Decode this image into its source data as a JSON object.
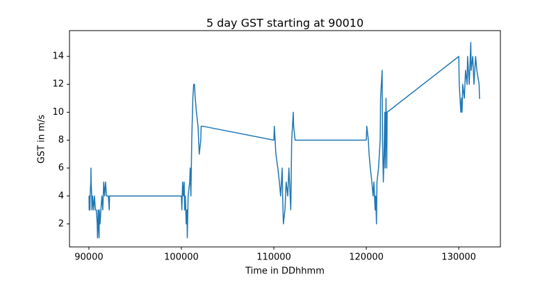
{
  "chart_data": {
    "type": "line",
    "title": "5 day GST starting at 90010",
    "xlabel": "Time in DDhhmm",
    "ylabel": "GST in m/s",
    "color": "#1f77b4",
    "x": [
      90010,
      90030,
      90050,
      90110,
      90130,
      90200,
      90220,
      90240,
      90300,
      90330,
      90400,
      90500,
      90600,
      90700,
      90800,
      90900,
      90930,
      91000,
      91030,
      91100,
      91130,
      91200,
      91300,
      91400,
      91500,
      91600,
      91700,
      91800,
      91900,
      92000,
      92100,
      92200,
      92230,
      100000,
      100050,
      100130,
      100220,
      100300,
      100350,
      100430,
      100520,
      100600,
      100640,
      100730,
      100900,
      100950,
      101030,
      101120,
      101200,
      101240,
      101330,
      101410,
      101500,
      101630,
      101800,
      101930,
      102100,
      102140,
      102300,
      110000,
      110050,
      110220,
      110430,
      110600,
      110730,
      110820,
      110900,
      110950,
      111030,
      111200,
      111330,
      111500,
      111630,
      111830,
      111930,
      112100,
      112140,
      112300,
      120000,
      120050,
      120220,
      120300,
      120430,
      120600,
      120730,
      120820,
      120950,
      121010,
      121100,
      121150,
      121320,
      121500,
      121540,
      121710,
      121750,
      121840,
      121920,
      122000,
      122040,
      122130,
      122210,
      122250,
      130000,
      130050,
      130220,
      130300,
      130350,
      130430,
      130600,
      130730,
      130900,
      130950,
      131130,
      131300,
      131340,
      131510,
      131640,
      131820,
      131950,
      132200,
      132240,
      132320
    ],
    "values": [
      4,
      3,
      4,
      3,
      4,
      5,
      6,
      5,
      4,
      3,
      4,
      3,
      4,
      3,
      3,
      2,
      1,
      3,
      2,
      1,
      3,
      2,
      3,
      4,
      3,
      5,
      4,
      5,
      4,
      4,
      4,
      3,
      4,
      4,
      3,
      5,
      4,
      5,
      3,
      4,
      2,
      3,
      1,
      4,
      5,
      6,
      4,
      8,
      10,
      11,
      12,
      12,
      11,
      10,
      9,
      7,
      8,
      9,
      9,
      8,
      9,
      7,
      6,
      5,
      4,
      5,
      6,
      4,
      2,
      3,
      5,
      4,
      6,
      3,
      8,
      10,
      9,
      8,
      8,
      9,
      8,
      7,
      6,
      5,
      4,
      5,
      3,
      4,
      2,
      5,
      6,
      8,
      11,
      13,
      8,
      5,
      7,
      10,
      6,
      11,
      6,
      10,
      14,
      12,
      10,
      11,
      10,
      12,
      11,
      13,
      12,
      14,
      12,
      15,
      13,
      14,
      12,
      14,
      13,
      12,
      11,
      11
    ],
    "xlim": [
      87900,
      134500
    ],
    "ylim": [
      0.35,
      15.85
    ],
    "xticks": [
      90000,
      100000,
      110000,
      120000,
      130000
    ],
    "yticks": [
      2,
      4,
      6,
      8,
      10,
      12,
      14
    ]
  }
}
